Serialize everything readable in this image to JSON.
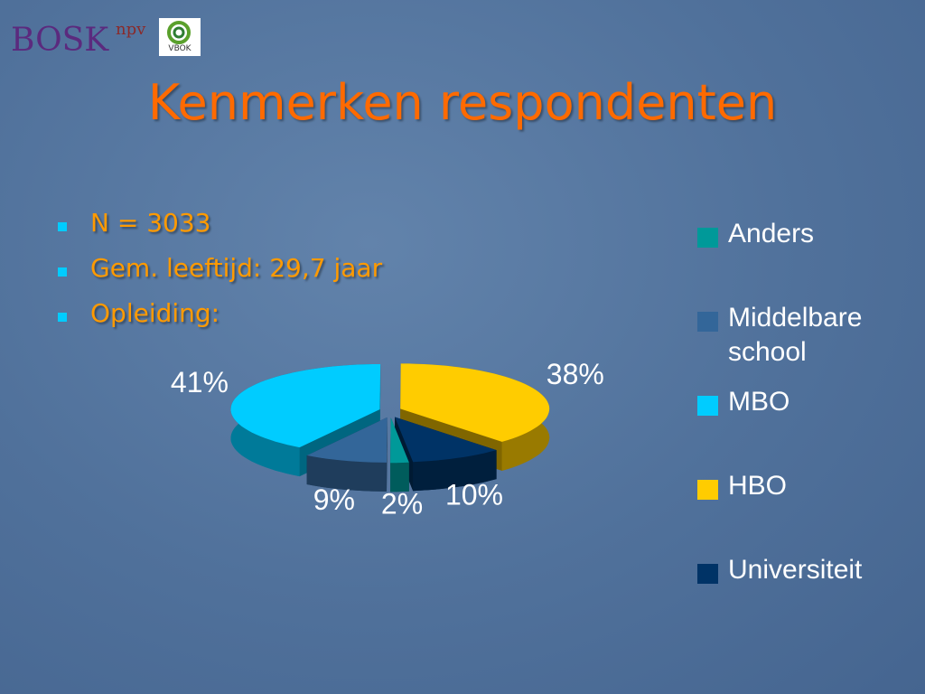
{
  "logos": [
    "BOSK",
    "npv",
    "VBOK"
  ],
  "title": "Kenmerken respondenten",
  "bullets": [
    "N = 3033",
    "Gem. leeftijd: 29,7 jaar",
    "Opleiding:"
  ],
  "chart_data": {
    "type": "pie3d",
    "categories": [
      "Anders",
      "Middelbare school",
      "MBO",
      "HBO",
      "Universiteit"
    ],
    "series": [
      {
        "values": [
          2,
          9,
          41,
          38,
          10
        ],
        "value_labels": [
          "2%",
          "9%",
          "41%",
          "38%",
          "10%"
        ],
        "colors": [
          "#009999",
          "#336699",
          "#00ccff",
          "#ffcc00",
          "#003366"
        ]
      }
    ],
    "legend": "right"
  }
}
